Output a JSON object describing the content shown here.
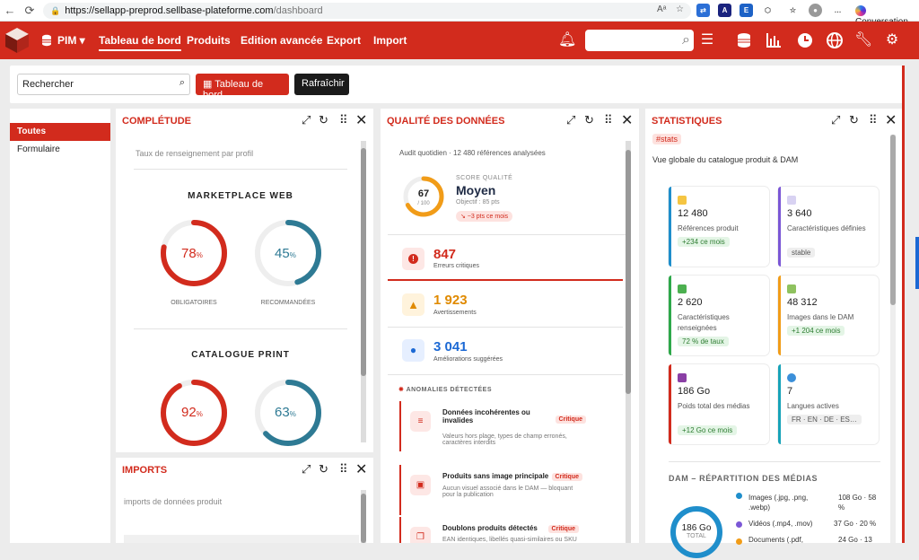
{
  "browser": {
    "url_host": "https://sellapp-preprod.sellbase-plateforme.com",
    "url_path": "/dashboard",
    "conversation": "Conversation",
    "read_aloud": "Aᵃ"
  },
  "nav": {
    "pim": "PIM",
    "tableau": "Tableau de bord",
    "produits": "Produits",
    "edition": "Edition avancée",
    "export": "Export",
    "import": "Import"
  },
  "toolbar": {
    "search": "Rechercher",
    "dashboard_btn": "Tableau de bord",
    "refresh_btn": "Rafraîchir"
  },
  "sidebar": {
    "items": [
      "Toutes",
      "Formulaire"
    ]
  },
  "completude": {
    "title": "COMPLÉTUDE",
    "subtitle": "Taux de renseignement par profil",
    "sections": [
      {
        "name": "MARKETPLACE WEB",
        "g1": {
          "value": "78",
          "pct": 78,
          "label": "OBLIGATOIRES"
        },
        "g2": {
          "value": "45",
          "pct": 45,
          "label": "RECOMMANDÉES"
        }
      },
      {
        "name": "CATALOGUE PRINT",
        "g1": {
          "value": "92",
          "pct": 92
        },
        "g2": {
          "value": "63",
          "pct": 63
        }
      }
    ],
    "pct_symbol": "%"
  },
  "imports": {
    "title": "IMPORTS",
    "subtitle": "imports de données produit"
  },
  "qualite": {
    "title": "QUALITÉ DES DONNÉES",
    "audit": "Audit quotidien · 12 480 références analysées",
    "score": {
      "value": "67",
      "max": "/ 100",
      "pct": 67,
      "label": "SCORE QUALITÉ",
      "rating": "Moyen",
      "objective": "Objectif : 85 pts",
      "trend": "↘ −3 pts ce mois"
    },
    "errors": {
      "value": "847",
      "label": "Erreurs critiques"
    },
    "warnings": {
      "value": "1 923",
      "label": "Avertissements"
    },
    "improvements": {
      "value": "3 041",
      "label": "Améliorations suggérées"
    },
    "anomalies_title": "ANOMALIES DÉTECTÉES",
    "anomalies": [
      {
        "title": "Données incohérentes ou invalides",
        "badge": "Critique",
        "desc": "Valeurs hors plage, types de champ erronés, caractères interdits"
      },
      {
        "title": "Produits sans image principale",
        "badge": "Critique",
        "desc": "Aucun visuel associé dans le DAM — bloquant pour la publication"
      },
      {
        "title": "Doublons produits détectés",
        "badge": "Critique",
        "desc": "EAN identiques, libellés quasi-similaires ou SKU"
      }
    ]
  },
  "stats": {
    "title": "STATISTIQUES",
    "tag": "#stats",
    "subtitle": "Vue globale du catalogue produit & DAM",
    "cards": [
      {
        "value": "12 480",
        "label": "Références produit",
        "badge": "+234 ce mois",
        "color": "#1f8ecb"
      },
      {
        "value": "3 640",
        "label": "Caractéristiques définies",
        "badge": "stable",
        "color": "#7b57d6"
      },
      {
        "value": "2 620",
        "label": "Caractéristiques renseignées",
        "badge": "72 % de taux",
        "color": "#2ea84a"
      },
      {
        "value": "48 312",
        "label": "Images dans le DAM",
        "badge": "+1 204 ce mois",
        "color": "#f19c18"
      },
      {
        "value": "186 Go",
        "label": "Poids total des médias",
        "badge": "+12 Go ce mois",
        "color": "#d22b1d"
      },
      {
        "value": "7",
        "label": "Langues actives",
        "badge": "FR · EN · DE · ES…",
        "color": "#17a3b8"
      }
    ],
    "dam_title": "DAM – RÉPARTITION DES MÉDIAS",
    "dam_total": "186 Go",
    "dam_total_label": "TOTAL",
    "dam_items": [
      {
        "name": "Images (.jpg, .png, .webp)",
        "value": "108 Go · 58 %",
        "color": "#1f8ecb"
      },
      {
        "name": "Vidéos (.mp4, .mov)",
        "value": "37 Go · 20 %",
        "color": "#7b57d6"
      },
      {
        "name": "Documents (.pdf,",
        "value": "24 Go · 13",
        "color": "#f19c18"
      }
    ]
  }
}
